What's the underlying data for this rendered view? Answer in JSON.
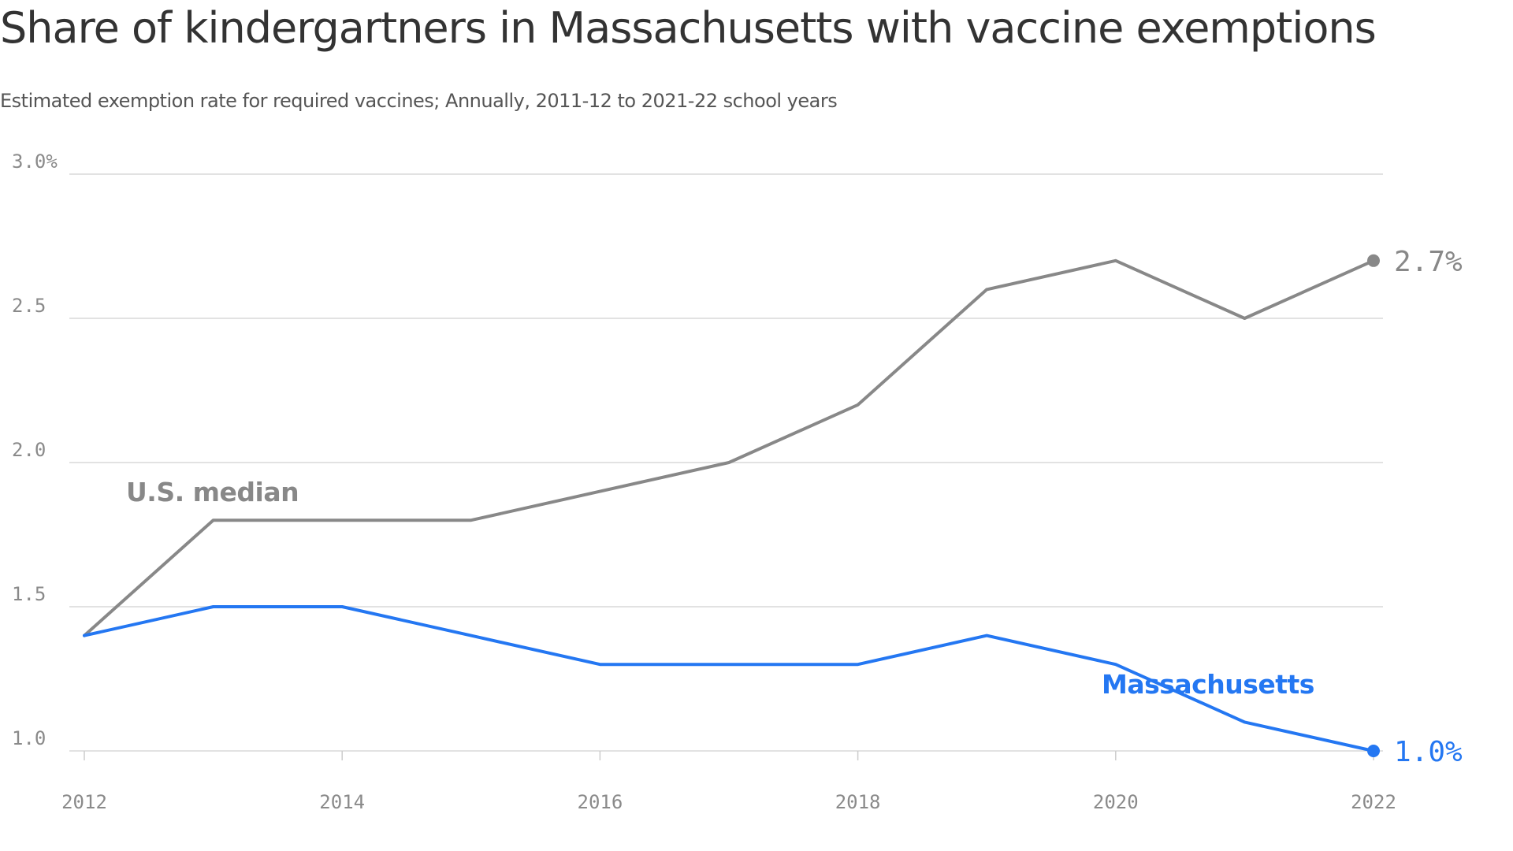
{
  "chart_data": {
    "type": "line",
    "title": "Share of kindergartners in Massachusetts with vaccine exemptions",
    "subtitle": "Estimated exemption rate for required vaccines; Annually, 2011-12 to 2021-22 school years",
    "x": [
      2012,
      2013,
      2014,
      2015,
      2016,
      2017,
      2018,
      2019,
      2020,
      2021,
      2022
    ],
    "x_ticks": [
      2012,
      2014,
      2016,
      2018,
      2020,
      2022
    ],
    "x_tick_labels": [
      "2012",
      "2014",
      "2016",
      "2018",
      "2020",
      "2022"
    ],
    "y_ticks": [
      1.0,
      1.5,
      2.0,
      2.5,
      3.0
    ],
    "y_tick_labels": [
      "1.0",
      "1.5",
      "2.0",
      "2.5",
      "3.0%"
    ],
    "ylim": [
      1.0,
      3.0
    ],
    "xlim": [
      2012,
      2022
    ],
    "grid": true,
    "legend": "none",
    "series": [
      {
        "name": "U.S. median",
        "color": "#888888",
        "values": [
          1.4,
          1.8,
          1.8,
          1.8,
          1.9,
          2.0,
          2.2,
          2.6,
          2.7,
          2.5,
          2.7
        ],
        "end_label": "2.7%"
      },
      {
        "name": "Massachusetts",
        "color": "#2477f2",
        "values": [
          1.4,
          1.5,
          1.5,
          1.4,
          1.3,
          1.3,
          1.3,
          1.4,
          1.3,
          1.1,
          1.0
        ],
        "end_label": "1.0%"
      }
    ]
  }
}
